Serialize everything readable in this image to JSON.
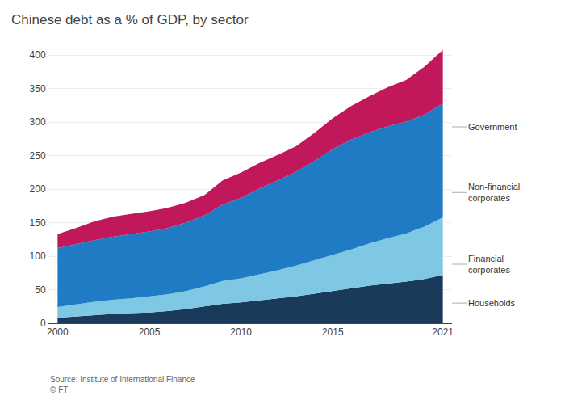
{
  "chart_data": {
    "type": "area",
    "stacked": true,
    "title": "Chinese debt as a % of GDP, by sector",
    "source": "Source: Institute of International Finance\n© FT",
    "x": [
      2000,
      2001,
      2002,
      2003,
      2004,
      2005,
      2006,
      2007,
      2008,
      2009,
      2010,
      2011,
      2012,
      2013,
      2014,
      2015,
      2016,
      2017,
      2018,
      2019,
      2020,
      2021
    ],
    "series": [
      {
        "name": "Households",
        "color": "#1a3a5c",
        "values": [
          8,
          10,
          12,
          14,
          15,
          16,
          18,
          21,
          25,
          29,
          31,
          34,
          37,
          40,
          44,
          48,
          52,
          56,
          59,
          62,
          66,
          72
        ]
      },
      {
        "name": "Financial\ncorporates",
        "color": "#7ec8e3",
        "values": [
          16,
          18,
          20,
          21,
          22,
          24,
          25,
          27,
          30,
          34,
          36,
          39,
          42,
          46,
          50,
          54,
          58,
          63,
          68,
          72,
          78,
          86
        ]
      },
      {
        "name": "Non-financial\ncorporates",
        "color": "#1e7bc4",
        "values": [
          88,
          90,
          92,
          94,
          96,
          97,
          99,
          102,
          106,
          114,
          120,
          128,
          134,
          140,
          148,
          158,
          164,
          166,
          167,
          167,
          167,
          170
        ]
      },
      {
        "name": "Government",
        "color": "#c0185a",
        "values": [
          21,
          24,
          28,
          30,
          30,
          30,
          30,
          30,
          30,
          36,
          38,
          38,
          38,
          38,
          42,
          46,
          50,
          54,
          58,
          62,
          72,
          80
        ]
      }
    ],
    "annotations": [
      {
        "text": "Government",
        "y": 293
      },
      {
        "text": "Non-financial\ncorporates",
        "y": 195
      },
      {
        "text": "Financial\ncorporates",
        "y": 88
      },
      {
        "text": "Households",
        "y": 30
      }
    ],
    "xlim": [
      1999.5,
      2021.5
    ],
    "xticks": [
      2000,
      2005,
      2010,
      2015,
      2021
    ],
    "ylim": [
      0,
      410
    ],
    "yticks": [
      0,
      50,
      100,
      150,
      200,
      250,
      300,
      350,
      400
    ],
    "grid": true
  }
}
